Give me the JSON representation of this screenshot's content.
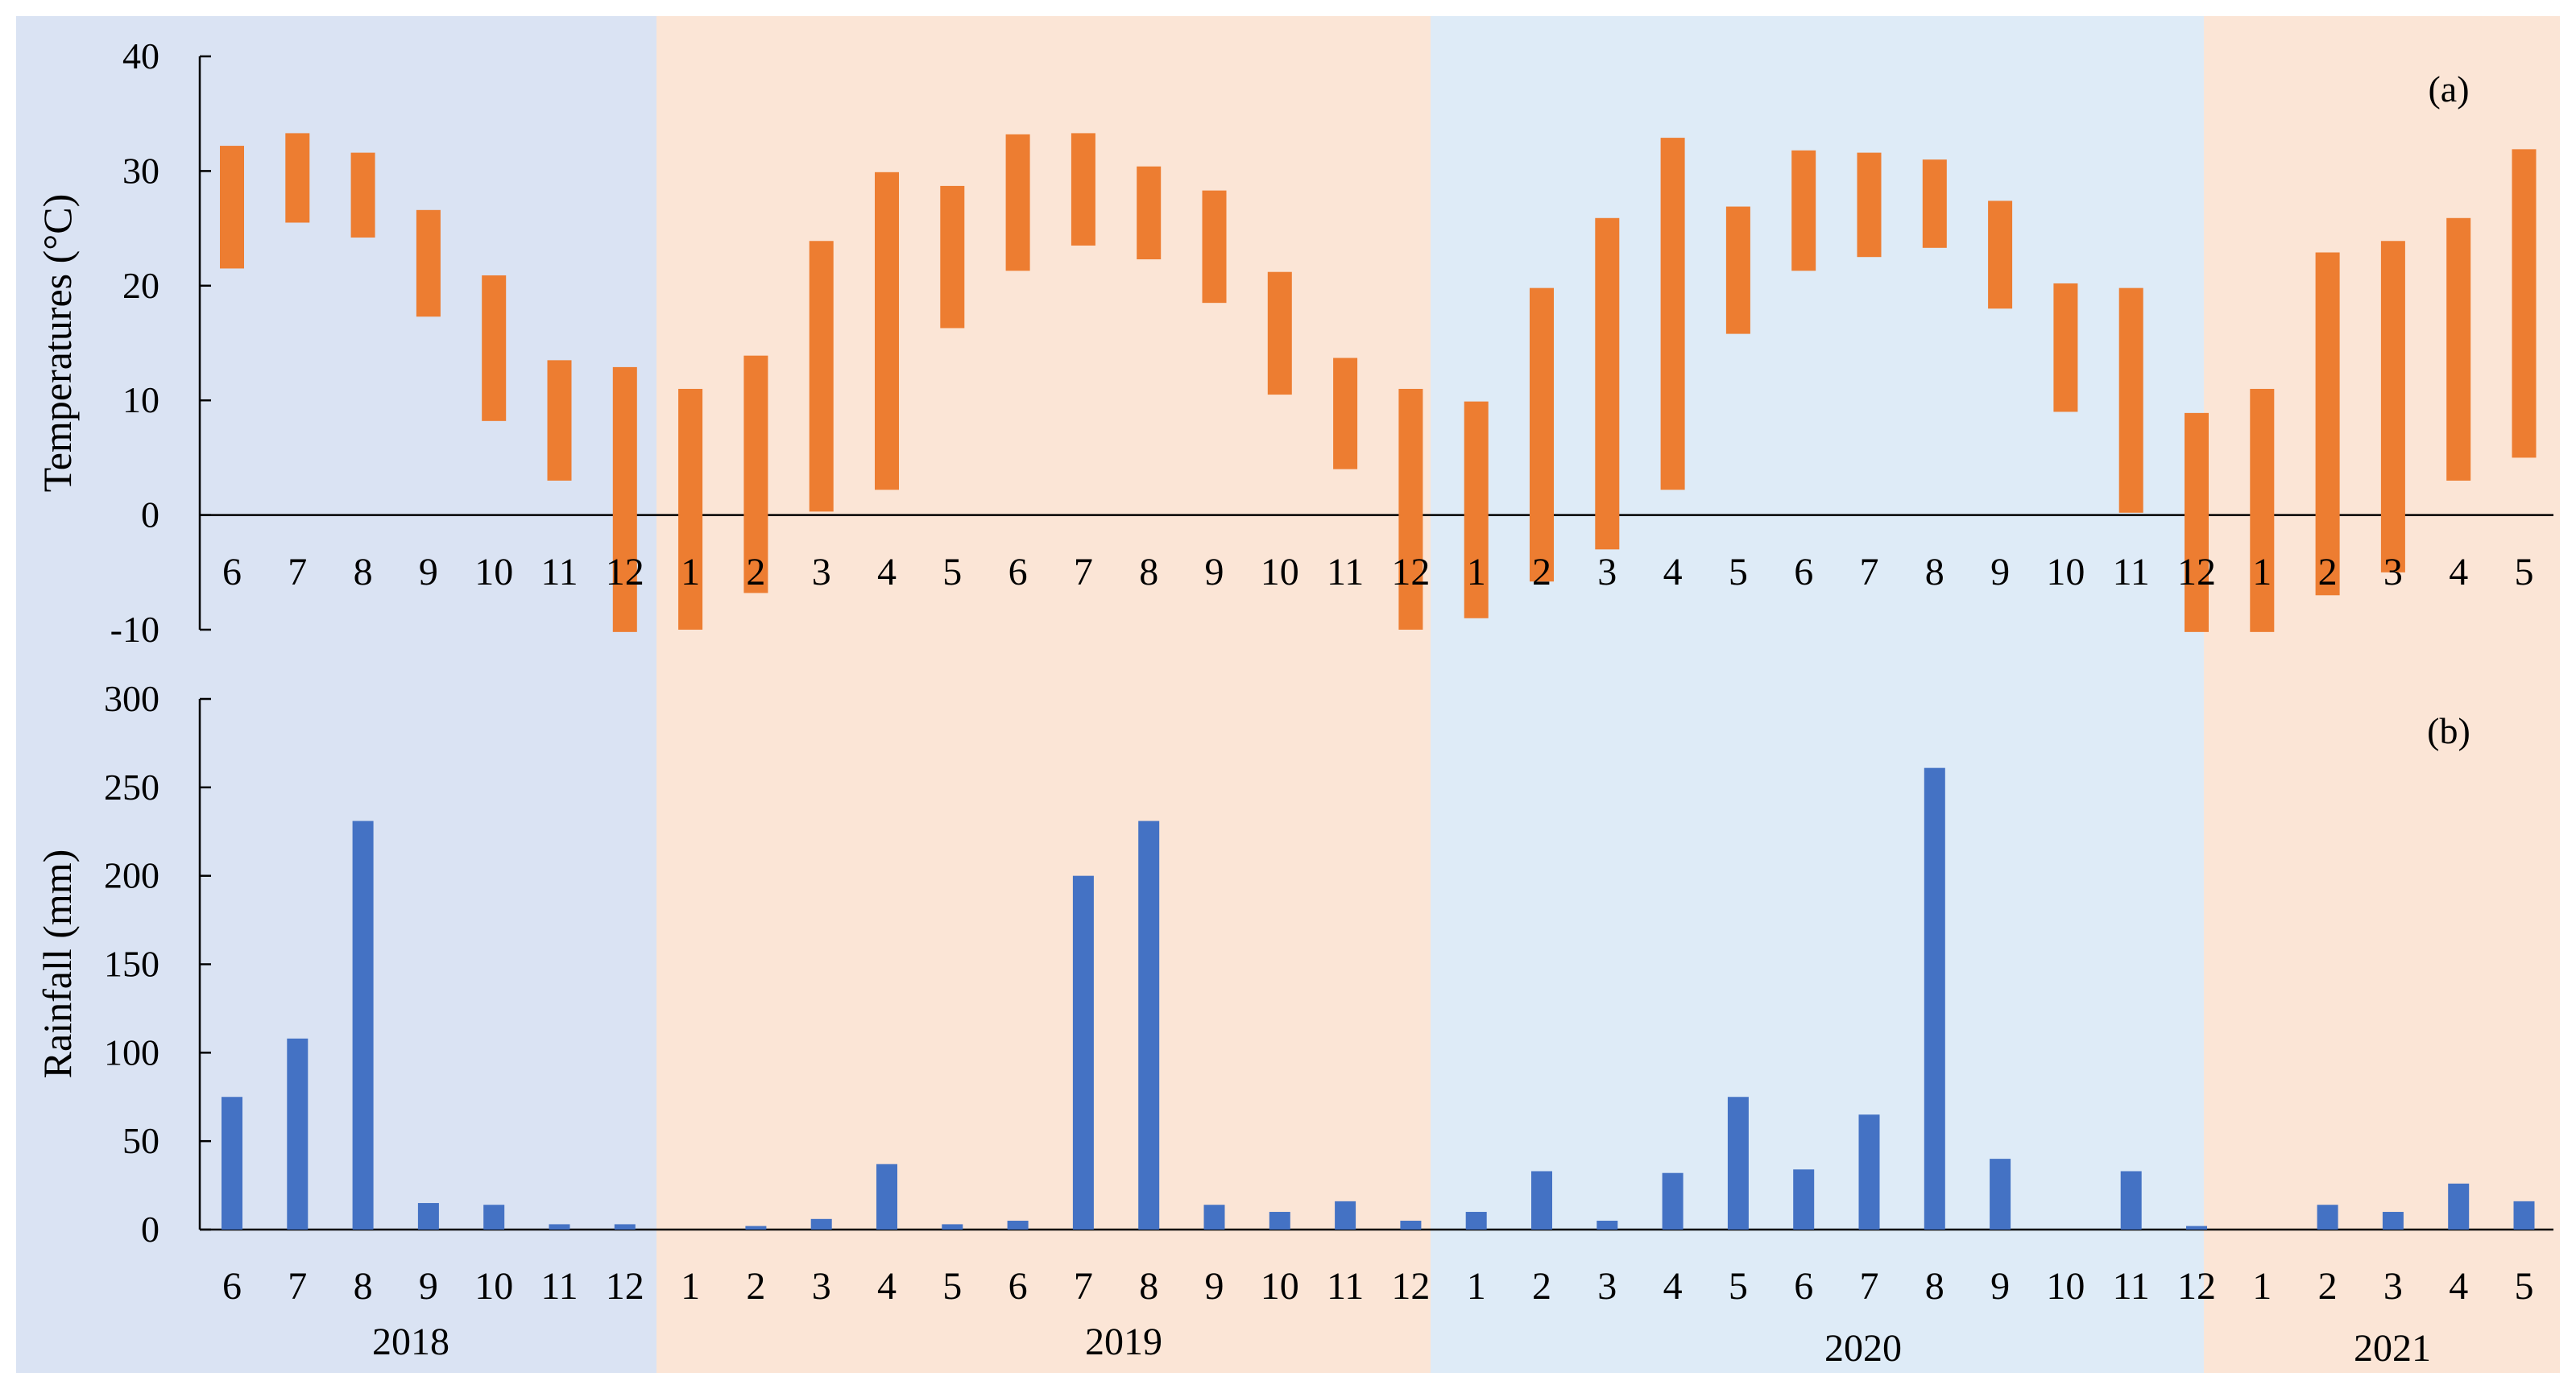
{
  "chart_data": [
    {
      "type": "bar",
      "subtype": "floating-range",
      "panel_label": "(a)",
      "ylabel": "Temperatures (°C)",
      "ylim": [
        -10,
        40
      ],
      "yticks": [
        "40",
        "30",
        "20",
        "10",
        "0",
        "-10"
      ],
      "categories": [
        "6",
        "7",
        "8",
        "9",
        "10",
        "11",
        "12",
        "1",
        "2",
        "3",
        "4",
        "5",
        "6",
        "7",
        "8",
        "9",
        "10",
        "11",
        "12",
        "1",
        "2",
        "3",
        "4",
        "5",
        "6",
        "7",
        "8",
        "9",
        "10",
        "11",
        "12",
        "1",
        "2",
        "3",
        "4",
        "5"
      ],
      "years": [
        {
          "label": "2018",
          "months": 7
        },
        {
          "label": "2019",
          "months": 12
        },
        {
          "label": "2020",
          "months": 12
        },
        {
          "label": "2021",
          "months": 5
        }
      ],
      "series": [
        {
          "low": [
            21.5,
            25.5,
            24.2,
            17.3,
            8.2,
            3.0,
            -10.2,
            -10.0,
            -6.8,
            0.3,
            2.2,
            16.3,
            21.3,
            23.5,
            22.3,
            18.5,
            10.5,
            4.0,
            -10.0,
            -9.0,
            -5.8,
            -3.0,
            2.2,
            15.8,
            21.3,
            22.5,
            23.3,
            18.0,
            9.0,
            0.2,
            -10.2,
            -10.2,
            -7.0,
            -5.0,
            3.0,
            5.0
          ],
          "high": [
            32.2,
            33.3,
            31.6,
            26.6,
            20.9,
            13.5,
            12.9,
            11.0,
            13.9,
            23.9,
            29.9,
            28.7,
            33.2,
            33.3,
            30.4,
            28.3,
            21.2,
            13.7,
            11.0,
            9.9,
            19.8,
            25.9,
            32.9,
            26.9,
            31.8,
            31.6,
            31.0,
            27.4,
            20.2,
            19.8,
            8.9,
            11.0,
            22.9,
            23.9,
            25.9,
            31.9
          ]
        }
      ]
    },
    {
      "type": "bar",
      "panel_label": "(b)",
      "ylabel": "Rainfall (mm)",
      "ylim": [
        0,
        300
      ],
      "yticks": [
        "300",
        "250",
        "200",
        "150",
        "100",
        "50",
        "0"
      ],
      "categories": [
        "6",
        "7",
        "8",
        "9",
        "10",
        "11",
        "12",
        "1",
        "2",
        "3",
        "4",
        "5",
        "6",
        "7",
        "8",
        "9",
        "10",
        "11",
        "12",
        "1",
        "2",
        "3",
        "4",
        "5",
        "6",
        "7",
        "8",
        "9",
        "10",
        "11",
        "12",
        "1",
        "2",
        "3",
        "4",
        "5"
      ],
      "series": [
        {
          "values": [
            75,
            108,
            231,
            15,
            14,
            3,
            3,
            0,
            2,
            6,
            37,
            3,
            5,
            200,
            231,
            14,
            10,
            16,
            5,
            10,
            33,
            5,
            32,
            75,
            34,
            65,
            261,
            40,
            0,
            33,
            2,
            0,
            14,
            10,
            26,
            16
          ]
        }
      ]
    }
  ],
  "colors": {
    "temperature_bar": "#ED7D31",
    "rainfall_bar": "#4472C4",
    "band_2018": "#DAE3F3",
    "band_2019": "#FBE5D6",
    "band_2020": "#DEEBF7",
    "band_2021": "#FBE5D6",
    "axis": "#000000"
  }
}
